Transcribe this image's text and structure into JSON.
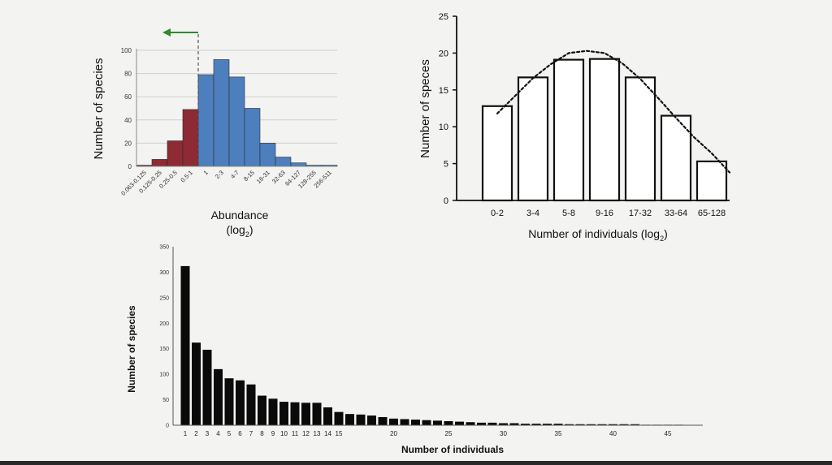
{
  "chart_data": [
    {
      "id": "abundance-histogram",
      "type": "bar",
      "ylabel": "Number of species",
      "xlabel": "Abundance",
      "xlabel_sub": "(log",
      "xlabel_subscript": "2",
      "xlabel_close": ")",
      "ylim": [
        0,
        100
      ],
      "yticks": [
        0,
        20,
        40,
        60,
        80,
        100
      ],
      "grid": true,
      "categories": [
        "0.063-0.125",
        "0.125-0.25",
        "0.25-0.5",
        "0.5-1",
        "1",
        "2-3",
        "4-7",
        "8-15",
        "16-31",
        "32-63",
        "64-127",
        "128-255",
        "256-511"
      ],
      "values": [
        1,
        6,
        22,
        49,
        79,
        92,
        77,
        50,
        20,
        8,
        3,
        1,
        1
      ],
      "bar_colors": [
        "#8e2a34",
        "#8e2a34",
        "#8e2a34",
        "#8e2a34",
        "#4d7fbf",
        "#4d7fbf",
        "#4d7fbf",
        "#4d7fbf",
        "#4d7fbf",
        "#4d7fbf",
        "#4d7fbf",
        "#4d7fbf",
        "#4d7fbf"
      ],
      "annotation": {
        "type": "dashed-threshold-with-left-arrow",
        "after_category_index": 3,
        "color": "#2e8b2e"
      }
    },
    {
      "id": "species-octave-histogram",
      "type": "bar",
      "ylabel": "Number of speces",
      "xlabel": "Number of individuals (log",
      "xlabel_subscript": "2",
      "xlabel_close": ")",
      "ylim": [
        0,
        25
      ],
      "yticks": [
        0,
        5,
        10,
        15,
        20,
        25
      ],
      "grid": false,
      "categories": [
        "0-2",
        "3-4",
        "5-8",
        "9-16",
        "17-32",
        "33-64",
        "65-128"
      ],
      "values": [
        12.8,
        16.7,
        19.1,
        19.2,
        16.7,
        11.5,
        5.3
      ],
      "fit_curve": {
        "style": "dotted",
        "x": [
          0,
          0.5,
          1,
          1.5,
          2,
          2.5,
          3,
          3.5,
          4,
          4.5,
          5,
          5.5,
          6,
          6.5
        ],
        "y": [
          11.8,
          14.2,
          16.6,
          18.5,
          20.0,
          20.3,
          20.0,
          18.6,
          16.5,
          13.9,
          11.2,
          8.6,
          6.4,
          3.8
        ]
      }
    },
    {
      "id": "species-abundance-distribution",
      "type": "bar",
      "ylabel": "Number of species",
      "xlabel": "Number of individuals",
      "ylim": [
        0,
        350
      ],
      "yticks": [
        0,
        50,
        100,
        150,
        200,
        250,
        300,
        350
      ],
      "grid": false,
      "categories": [
        "1",
        "2",
        "3",
        "4",
        "5",
        "6",
        "7",
        "8",
        "9",
        "10",
        "11",
        "12",
        "13",
        "14",
        "15",
        "16",
        "17",
        "18",
        "19",
        "20",
        "21",
        "22",
        "23",
        "24",
        "25",
        "26",
        "27",
        "28",
        "29",
        "30",
        "31",
        "32",
        "33",
        "34",
        "35",
        "36",
        "37",
        "38",
        "39",
        "40",
        "41",
        "42",
        "43",
        "44",
        "45",
        "46"
      ],
      "values": [
        312,
        162,
        148,
        110,
        92,
        88,
        80,
        58,
        52,
        46,
        45,
        44,
        44,
        35,
        26,
        22,
        21,
        19,
        16,
        13,
        12,
        11,
        10,
        9,
        8,
        7,
        6,
        5,
        5,
        4,
        4,
        3,
        3,
        3,
        3,
        2,
        2,
        2,
        2,
        2,
        2,
        2,
        1,
        1,
        1,
        1
      ],
      "xtick_labels": [
        "1",
        "2",
        "3",
        "4",
        "5",
        "6",
        "7",
        "8",
        "9",
        "10",
        "11",
        "12",
        "13",
        "14",
        "15",
        "20",
        "25",
        "30",
        "35",
        "40",
        "45"
      ]
    }
  ]
}
